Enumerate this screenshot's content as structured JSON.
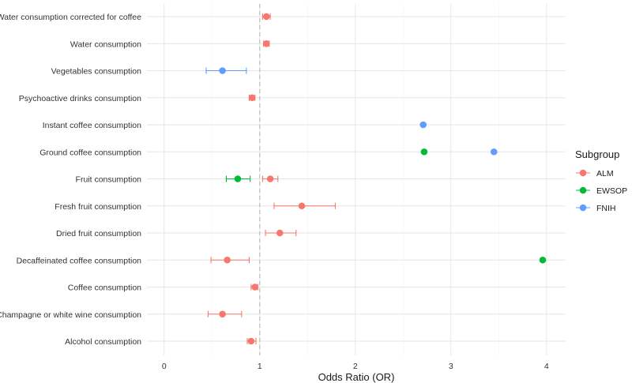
{
  "chart_data": {
    "type": "scatter",
    "subtype": "forest-plot",
    "title": "",
    "xlabel": "Odds Ratio (OR)",
    "ylabel": "",
    "xlim": [
      -0.18,
      4.2
    ],
    "x_ticks": [
      0,
      1,
      2,
      3,
      4
    ],
    "reference_line": 1,
    "grid": true,
    "legend": {
      "title": "Subgroup",
      "position": "right"
    },
    "categories": [
      "Water consumption corrected for coffee",
      "Water consumption",
      "Vegetables consumption",
      "Psychoactive drinks consumption",
      "Instant coffee consumption",
      "Ground coffee consumption",
      "Fruit consumption",
      "Fresh fruit consumption",
      "Dried fruit consumption",
      "Decaffeinated coffee consumption",
      "Coffee consumption",
      "Champagne or white wine consumption",
      "Alcohol consumption"
    ],
    "series": [
      {
        "name": "ALM",
        "color": "#F8766D",
        "points": [
          {
            "category": "Water consumption corrected for coffee",
            "or": 1.07,
            "lo": 1.03,
            "hi": 1.11
          },
          {
            "category": "Water consumption",
            "or": 1.07,
            "lo": 1.04,
            "hi": 1.1
          },
          {
            "category": "Psychoactive drinks consumption",
            "or": 0.92,
            "lo": 0.89,
            "hi": 0.95
          },
          {
            "category": "Fruit consumption",
            "or": 1.11,
            "lo": 1.03,
            "hi": 1.19
          },
          {
            "category": "Fresh fruit consumption",
            "or": 1.44,
            "lo": 1.15,
            "hi": 1.79
          },
          {
            "category": "Dried fruit consumption",
            "or": 1.21,
            "lo": 1.06,
            "hi": 1.38
          },
          {
            "category": "Decaffeinated coffee consumption",
            "or": 0.66,
            "lo": 0.49,
            "hi": 0.89
          },
          {
            "category": "Coffee consumption",
            "or": 0.95,
            "lo": 0.91,
            "hi": 0.98
          },
          {
            "category": "Champagne or white wine consumption",
            "or": 0.61,
            "lo": 0.46,
            "hi": 0.81
          },
          {
            "category": "Alcohol consumption",
            "or": 0.91,
            "lo": 0.87,
            "hi": 0.96
          }
        ]
      },
      {
        "name": "EWSOP",
        "color": "#00BA38",
        "points": [
          {
            "category": "Ground coffee consumption",
            "or": 2.72,
            "lo": 2.72,
            "hi": 2.72
          },
          {
            "category": "Fruit consumption",
            "or": 0.77,
            "lo": 0.65,
            "hi": 0.9
          },
          {
            "category": "Decaffeinated coffee consumption",
            "or": 3.96,
            "lo": 3.96,
            "hi": 3.96
          }
        ]
      },
      {
        "name": "FNIH",
        "color": "#619CFF",
        "points": [
          {
            "category": "Vegetables consumption",
            "or": 0.61,
            "lo": 0.44,
            "hi": 0.86
          },
          {
            "category": "Instant coffee consumption",
            "or": 2.71,
            "lo": 2.71,
            "hi": 2.71
          },
          {
            "category": "Ground coffee consumption",
            "or": 3.45,
            "lo": 3.45,
            "hi": 3.45
          }
        ]
      }
    ]
  }
}
